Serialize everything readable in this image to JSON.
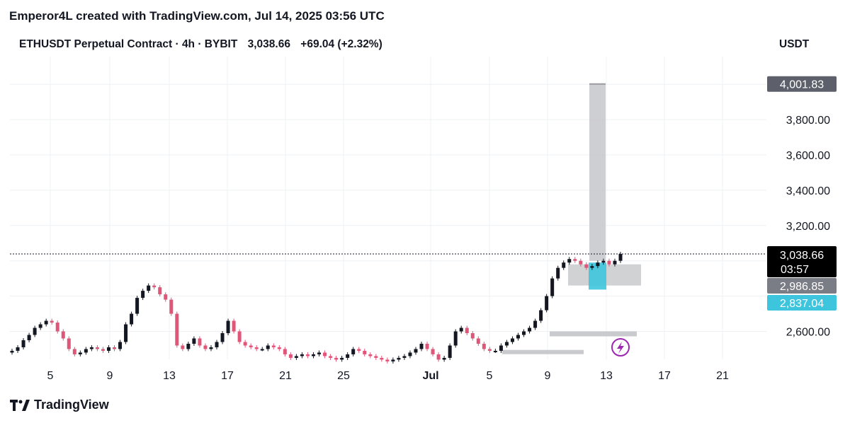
{
  "header": {
    "credit": "Emperor4L created with TradingView.com, Jul 14, 2025 03:56 UTC"
  },
  "symbol": {
    "name": "ETHUSDT Perpetual Contract · 4h · BYBIT",
    "price": "3,038.66",
    "change": "+69.04 (+2.32%)"
  },
  "axis_unit": "USDT",
  "footer": {
    "brand": "TradingView"
  },
  "colors": {
    "up": "#131722",
    "down": "#e05679",
    "box": "#c9cacd",
    "cyan": "#3dc5dd",
    "price_line": "#131722"
  },
  "chart_data": {
    "type": "line",
    "title": "ETHUSDT Perpetual Contract · 4h · BYBIT",
    "ylabel": "USDT",
    "xlabel": "",
    "ylim": [
      2480,
      4100
    ],
    "x_ticks": [
      "5",
      "9",
      "13",
      "17",
      "21",
      "25",
      "Jul",
      "5",
      "9",
      "13",
      "17",
      "21"
    ],
    "y_ticks": [
      "2,600.00",
      "3,200.00",
      "3,400.00",
      "3,600.00",
      "3,800.00"
    ],
    "grid": true,
    "series": [
      {
        "values": [
          2490,
          2510,
          2550,
          2580,
          2620,
          2640,
          2660,
          2650,
          2600,
          2560,
          2500,
          2470,
          2480,
          2500,
          2510,
          2500,
          2490,
          2510,
          2500,
          2540,
          2640,
          2700,
          2790,
          2830,
          2860,
          2850,
          2810,
          2780,
          2700,
          2520,
          2500,
          2530,
          2560,
          2520,
          2500,
          2510,
          2540,
          2590,
          2660,
          2600,
          2540,
          2520,
          2510,
          2500,
          2500,
          2520,
          2510,
          2500,
          2470,
          2450,
          2460,
          2470,
          2460,
          2470,
          2480,
          2460,
          2450,
          2440,
          2450,
          2470,
          2500,
          2490,
          2470,
          2460,
          2450,
          2440,
          2430,
          2440,
          2450,
          2460,
          2480,
          2500,
          2530,
          2500,
          2470,
          2440,
          2450,
          2520,
          2600,
          2620,
          2590,
          2560,
          2530,
          2500,
          2490,
          2490,
          2520,
          2540,
          2560,
          2580,
          2600,
          2620,
          2660,
          2720,
          2800,
          2900,
          2960,
          2990,
          3010,
          3000,
          2980,
          2960,
          2970,
          2990,
          3000,
          2980,
          3000,
          3038.66
        ]
      }
    ],
    "annotations": [
      {
        "label": "4,001.83"
      },
      {
        "label": "2,986.85"
      },
      {
        "label": "2,837.04"
      },
      {
        "label": "3,038.66"
      },
      {
        "label": "03:57"
      }
    ]
  }
}
